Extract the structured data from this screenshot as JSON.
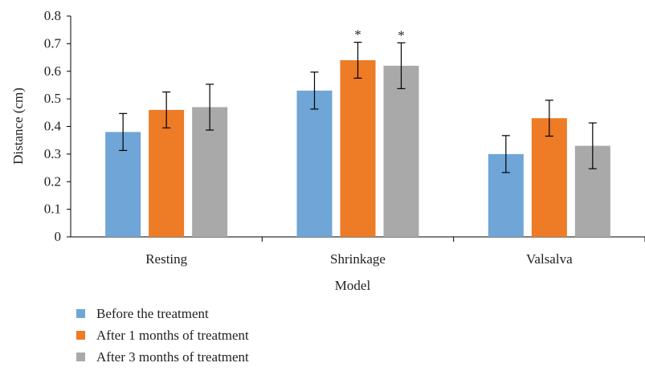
{
  "chart_data": {
    "type": "bar",
    "title": "",
    "xlabel": "Model",
    "ylabel": "Distance (cm)",
    "ylim": [
      0,
      0.8
    ],
    "yticks": [
      "0",
      "0.1",
      "0.2",
      "0.3",
      "0.4",
      "0.5",
      "0.6",
      "0.7",
      "0.8"
    ],
    "grid": false,
    "legend_position": "bottom-left",
    "categories": [
      "Resting",
      "Shrinkage",
      "Valsalva"
    ],
    "series": [
      {
        "name": "Before the treatment",
        "color": "#6fa5d7",
        "values": [
          0.38,
          0.53,
          0.3
        ],
        "errors": [
          0.067,
          0.067,
          0.067
        ],
        "markers": [
          "",
          "",
          ""
        ]
      },
      {
        "name": "After 1 months of treatment",
        "color": "#ee7b26",
        "values": [
          0.46,
          0.64,
          0.43
        ],
        "errors": [
          0.065,
          0.065,
          0.065
        ],
        "markers": [
          "",
          "*",
          ""
        ]
      },
      {
        "name": "After 3 months of treatment",
        "color": "#a9a9a9",
        "values": [
          0.47,
          0.62,
          0.33
        ],
        "errors": [
          0.083,
          0.083,
          0.083
        ],
        "markers": [
          "",
          "*",
          ""
        ]
      }
    ]
  }
}
